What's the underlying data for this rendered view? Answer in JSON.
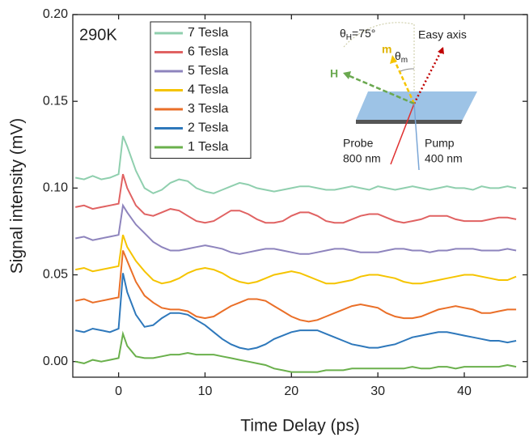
{
  "chart_data": {
    "type": "line",
    "x_label": "Time Delay (ps)",
    "y_label": "Signal intensity (mV)",
    "annotation": "290K",
    "xlim": [
      -5.3,
      47.3
    ],
    "ylim": [
      -0.009,
      0.2
    ],
    "xticks": [
      0,
      10,
      20,
      30,
      40
    ],
    "yticks": [
      {
        "value": 0,
        "label": "0.00"
      },
      {
        "value": 0.05,
        "label": "0.05"
      },
      {
        "value": 0.1,
        "label": "0.10"
      },
      {
        "value": 0.15,
        "label": "0.15"
      },
      {
        "value": 0.2,
        "label": "0.20"
      }
    ],
    "x": [
      -5,
      -4,
      -3,
      -2,
      -1,
      0,
      0.5,
      1,
      2,
      3,
      4,
      5,
      6,
      7,
      8,
      9,
      10,
      11,
      12,
      13,
      14,
      15,
      16,
      17,
      18,
      19,
      20,
      21,
      22,
      23,
      24,
      25,
      26,
      27,
      28,
      29,
      30,
      31,
      32,
      33,
      34,
      35,
      36,
      37,
      38,
      39,
      40,
      41,
      42,
      43,
      44,
      45,
      46
    ],
    "series": [
      {
        "name": "7 Tesla",
        "color": "#8fcfae",
        "values": [
          0.106,
          0.105,
          0.107,
          0.105,
          0.106,
          0.108,
          0.13,
          0.124,
          0.11,
          0.1,
          0.097,
          0.099,
          0.103,
          0.105,
          0.104,
          0.1,
          0.098,
          0.097,
          0.099,
          0.101,
          0.103,
          0.102,
          0.1,
          0.099,
          0.098,
          0.099,
          0.1,
          0.101,
          0.101,
          0.1,
          0.099,
          0.099,
          0.1,
          0.101,
          0.1,
          0.099,
          0.101,
          0.1,
          0.099,
          0.1,
          0.101,
          0.1,
          0.099,
          0.1,
          0.101,
          0.1,
          0.1,
          0.099,
          0.101,
          0.1,
          0.1,
          0.101,
          0.1
        ]
      },
      {
        "name": "6 Tesla",
        "color": "#e06262",
        "values": [
          0.089,
          0.09,
          0.088,
          0.089,
          0.09,
          0.091,
          0.108,
          0.1,
          0.09,
          0.085,
          0.084,
          0.086,
          0.088,
          0.087,
          0.084,
          0.081,
          0.08,
          0.081,
          0.084,
          0.087,
          0.087,
          0.085,
          0.082,
          0.08,
          0.08,
          0.081,
          0.084,
          0.086,
          0.086,
          0.084,
          0.081,
          0.08,
          0.08,
          0.082,
          0.084,
          0.085,
          0.085,
          0.083,
          0.081,
          0.08,
          0.081,
          0.082,
          0.084,
          0.084,
          0.084,
          0.082,
          0.081,
          0.081,
          0.081,
          0.082,
          0.083,
          0.083,
          0.082
        ]
      },
      {
        "name": "5 Tesla",
        "color": "#8e84bd",
        "values": [
          0.071,
          0.072,
          0.07,
          0.071,
          0.072,
          0.073,
          0.09,
          0.086,
          0.079,
          0.074,
          0.069,
          0.066,
          0.064,
          0.064,
          0.065,
          0.066,
          0.067,
          0.066,
          0.065,
          0.063,
          0.062,
          0.063,
          0.064,
          0.065,
          0.065,
          0.064,
          0.063,
          0.062,
          0.062,
          0.063,
          0.064,
          0.065,
          0.065,
          0.064,
          0.063,
          0.063,
          0.063,
          0.064,
          0.065,
          0.065,
          0.064,
          0.064,
          0.063,
          0.064,
          0.064,
          0.065,
          0.065,
          0.065,
          0.064,
          0.064,
          0.064,
          0.065,
          0.064
        ]
      },
      {
        "name": "4 Tesla",
        "color": "#f5c400",
        "values": [
          0.053,
          0.054,
          0.052,
          0.053,
          0.054,
          0.055,
          0.073,
          0.066,
          0.058,
          0.052,
          0.047,
          0.045,
          0.046,
          0.048,
          0.051,
          0.053,
          0.054,
          0.053,
          0.051,
          0.048,
          0.046,
          0.045,
          0.046,
          0.048,
          0.05,
          0.051,
          0.052,
          0.051,
          0.049,
          0.047,
          0.045,
          0.045,
          0.046,
          0.047,
          0.049,
          0.05,
          0.05,
          0.049,
          0.048,
          0.046,
          0.045,
          0.045,
          0.046,
          0.047,
          0.048,
          0.049,
          0.05,
          0.05,
          0.049,
          0.048,
          0.047,
          0.047,
          0.049
        ]
      },
      {
        "name": "3 Tesla",
        "color": "#ea6f28",
        "values": [
          0.035,
          0.036,
          0.034,
          0.035,
          0.036,
          0.037,
          0.064,
          0.058,
          0.046,
          0.038,
          0.034,
          0.031,
          0.03,
          0.03,
          0.029,
          0.026,
          0.025,
          0.026,
          0.029,
          0.032,
          0.034,
          0.036,
          0.036,
          0.035,
          0.032,
          0.029,
          0.026,
          0.024,
          0.023,
          0.024,
          0.026,
          0.028,
          0.03,
          0.032,
          0.033,
          0.032,
          0.031,
          0.028,
          0.026,
          0.025,
          0.025,
          0.026,
          0.028,
          0.03,
          0.031,
          0.032,
          0.031,
          0.03,
          0.028,
          0.028,
          0.029,
          0.03,
          0.03
        ]
      },
      {
        "name": "2 Tesla",
        "color": "#2e78bb",
        "values": [
          0.018,
          0.017,
          0.019,
          0.018,
          0.017,
          0.019,
          0.051,
          0.04,
          0.027,
          0.02,
          0.021,
          0.025,
          0.028,
          0.028,
          0.027,
          0.024,
          0.021,
          0.017,
          0.013,
          0.01,
          0.008,
          0.007,
          0.008,
          0.01,
          0.013,
          0.015,
          0.017,
          0.018,
          0.018,
          0.018,
          0.016,
          0.014,
          0.012,
          0.01,
          0.009,
          0.008,
          0.008,
          0.009,
          0.01,
          0.012,
          0.014,
          0.015,
          0.016,
          0.017,
          0.017,
          0.016,
          0.015,
          0.014,
          0.013,
          0.012,
          0.012,
          0.011,
          0.012
        ]
      },
      {
        "name": "1 Tesla",
        "color": "#6ab04c",
        "values": [
          0.0,
          -0.001,
          0.001,
          0.0,
          0.001,
          0.002,
          0.016,
          0.009,
          0.003,
          0.002,
          0.002,
          0.003,
          0.004,
          0.004,
          0.005,
          0.004,
          0.004,
          0.004,
          0.003,
          0.002,
          0.001,
          0.0,
          -0.001,
          -0.002,
          -0.004,
          -0.005,
          -0.006,
          -0.006,
          -0.006,
          -0.006,
          -0.005,
          -0.005,
          -0.005,
          -0.004,
          -0.004,
          -0.004,
          -0.004,
          -0.004,
          -0.004,
          -0.004,
          -0.003,
          -0.004,
          -0.004,
          -0.003,
          -0.003,
          -0.004,
          -0.003,
          -0.003,
          -0.003,
          -0.003,
          -0.003,
          -0.002,
          -0.003
        ]
      }
    ],
    "inset": {
      "field_angle": [
        "θ",
        "H",
        "=75°"
      ],
      "easy_axis": "Easy axis",
      "moment": "m",
      "moment_angle": [
        "θ",
        "m"
      ],
      "field": "H",
      "probe": [
        "Probe",
        "800 nm"
      ],
      "pump": [
        "Pump",
        "400 nm"
      ]
    }
  }
}
